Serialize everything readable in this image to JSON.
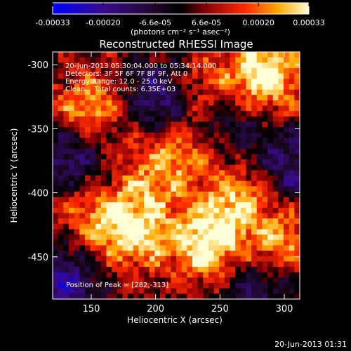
{
  "chart_data": {
    "type": "heatmap",
    "title": "Reconstructed RHESSI Image",
    "xlabel": "Heliocentric X (arcsec)",
    "ylabel": "Heliocentric Y (arcsec)",
    "xlim": [
      120,
      312
    ],
    "ylim": [
      -483,
      -290
    ],
    "x_ticks": [
      "150",
      "200",
      "250",
      "300"
    ],
    "x_tick_values": [
      150,
      200,
      250,
      300
    ],
    "y_ticks": [
      "-300",
      "-350",
      "-400",
      "-450"
    ],
    "y_tick_values": [
      -300,
      -350,
      -400,
      -450
    ],
    "colorbar": {
      "ticks": [
        "-0.00033",
        "-0.00020",
        "-6.6e-05",
        "6.6e-05",
        "0.00020",
        "0.00033"
      ],
      "tick_values": [
        -0.00033,
        -0.0002,
        -6.6e-05,
        6.6e-05,
        0.0002,
        0.00033
      ],
      "range": [
        -0.00033,
        0.00033
      ],
      "unit_label": "(photons cm⁻² s⁻¹ asec⁻²)"
    },
    "annotations": [
      "20-Jun-2013 05:30:04.000 to 05:34:14.000",
      "Detectors: 3F 5F 6F 7F 8F 9F, Att 0",
      "Energy Range: 12.0 - 25.0 keV",
      "Clean    Total counts: 6.35E+03"
    ],
    "peak_label": "Position of Peak = [282,-313]",
    "peak": [
      282,
      -313
    ],
    "bright_sources": [
      {
        "x": 285,
        "y": -308,
        "value": 0.00033
      },
      {
        "x": 148,
        "y": -335,
        "value": 0.00024
      },
      {
        "x": 232,
        "y": -318,
        "value": 0.00018
      },
      {
        "x": 182,
        "y": -430,
        "value": 0.00029
      },
      {
        "x": 240,
        "y": -440,
        "value": 0.00031
      },
      {
        "x": 265,
        "y": -405,
        "value": 0.00022
      },
      {
        "x": 200,
        "y": -385,
        "value": 0.00017
      },
      {
        "x": 150,
        "y": -415,
        "value": 0.00015
      },
      {
        "x": 300,
        "y": -440,
        "value": 0.0002
      },
      {
        "x": 225,
        "y": -360,
        "value": 0.00014
      }
    ],
    "dark_regions": [
      {
        "x": 205,
        "y": -325,
        "value": -0.00028
      },
      {
        "x": 132,
        "y": -370,
        "value": -0.00022
      },
      {
        "x": 305,
        "y": -380,
        "value": -0.0002
      },
      {
        "x": 130,
        "y": -470,
        "value": -0.00024
      },
      {
        "x": 280,
        "y": -475,
        "value": -0.00018
      },
      {
        "x": 255,
        "y": -345,
        "value": -0.00016
      }
    ]
  },
  "footer": {
    "datetime": "20-Jun-2013 01:31"
  }
}
